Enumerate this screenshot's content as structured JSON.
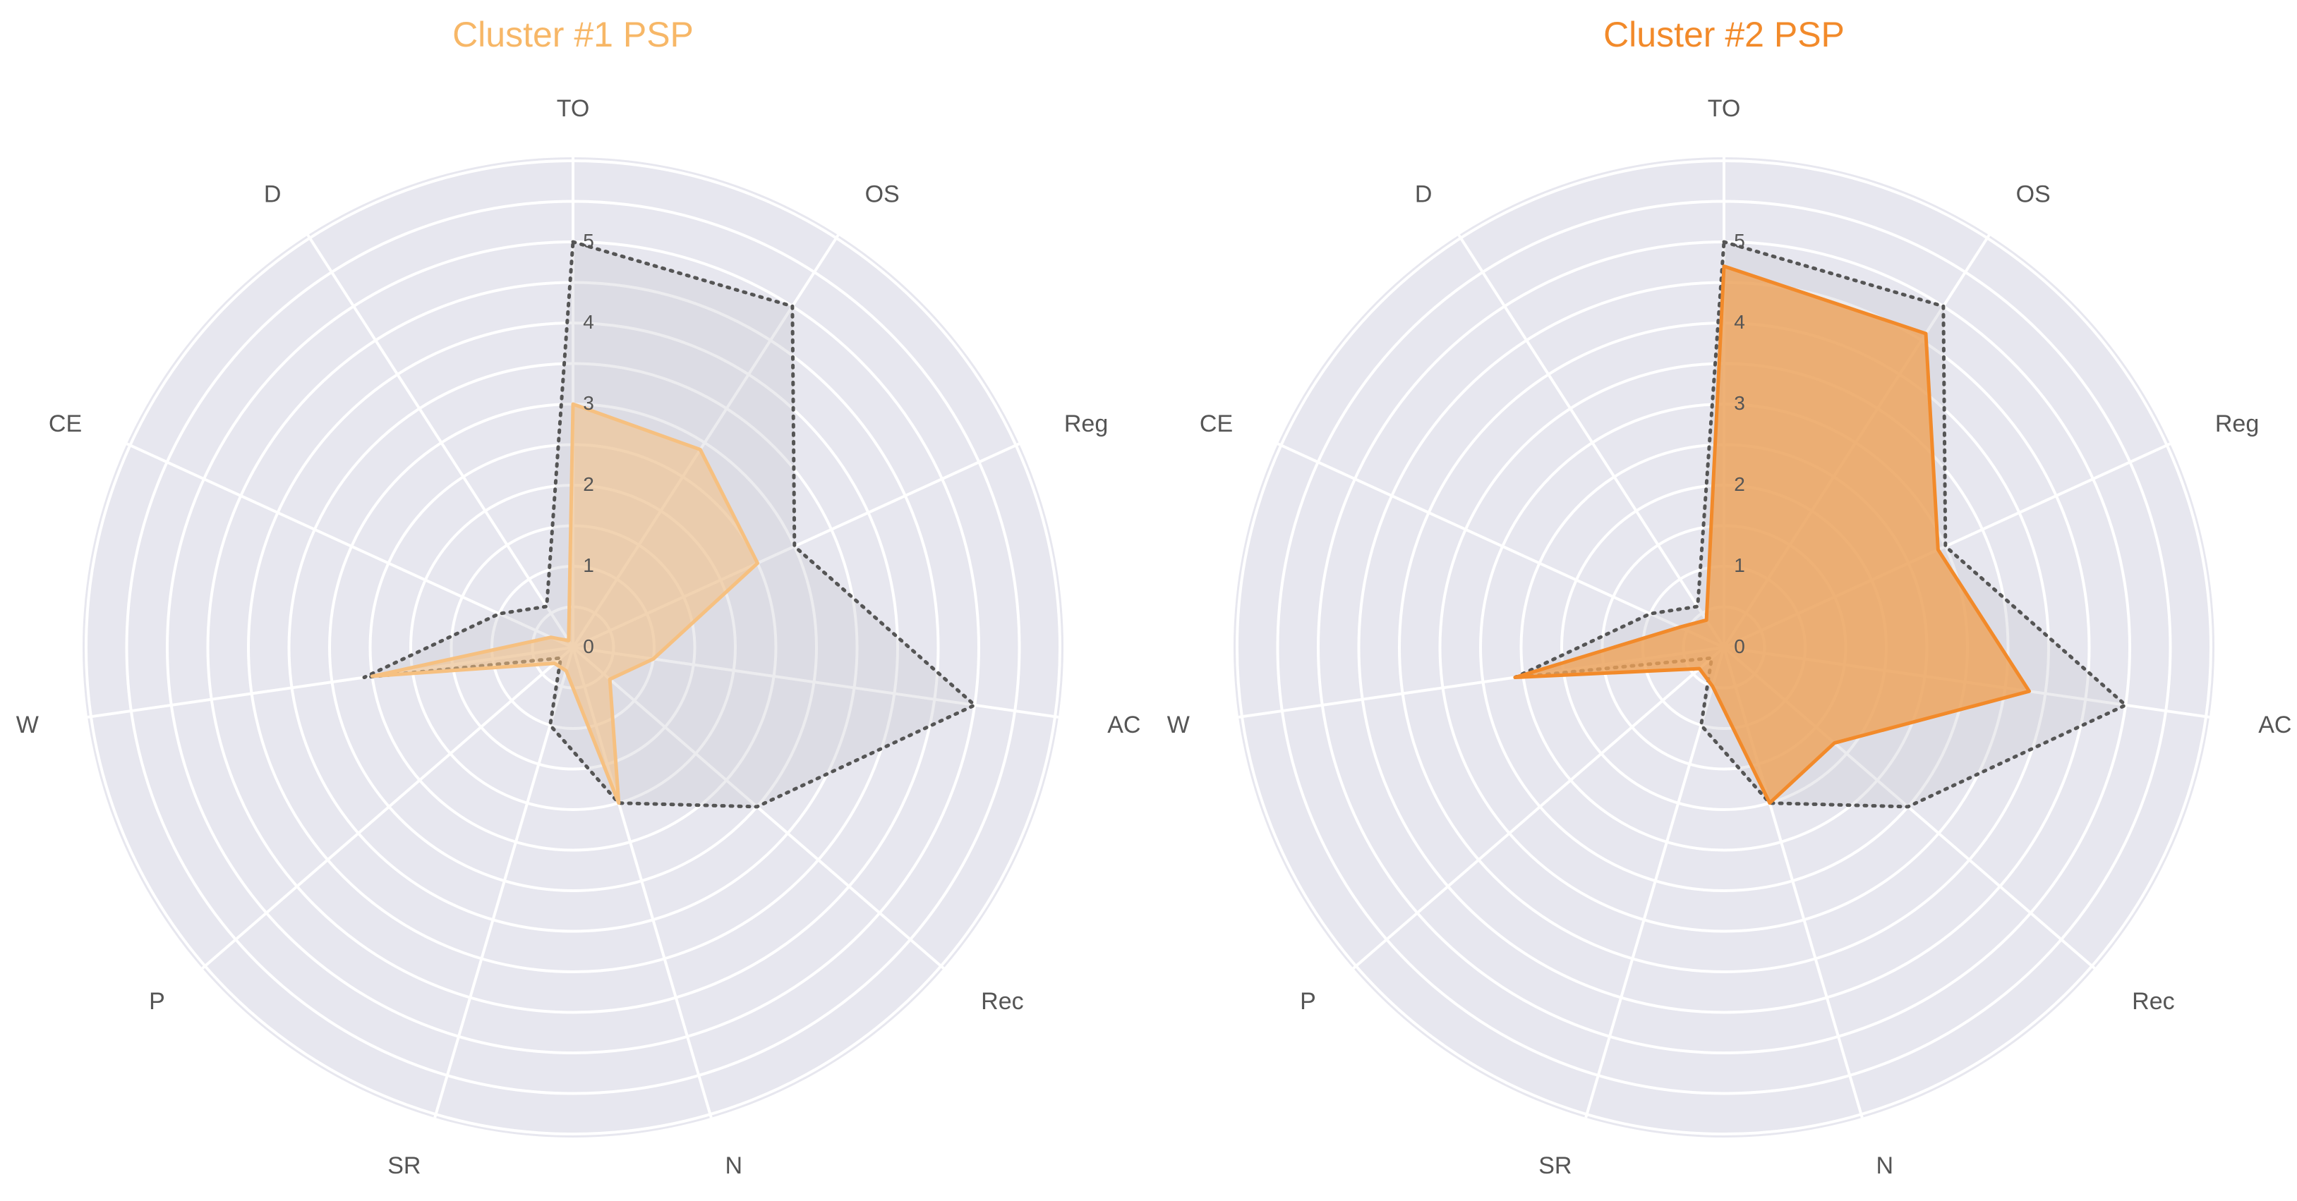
{
  "chart_data": [
    {
      "type": "radar",
      "title": "Cluster #1 PSP",
      "axes": [
        "TO",
        "OS",
        "Reg",
        "AC",
        "Rec",
        "N",
        "SR",
        "P",
        "W",
        "CE",
        "D"
      ],
      "radial_range": [
        0,
        5
      ],
      "radial_ticks": [
        "0",
        "1",
        "2",
        "3",
        "4",
        "5"
      ],
      "grid": true,
      "series": [
        {
          "values": [
            5.0,
            5.0,
            3.0,
            5.0,
            3.0,
            2.0,
            1.0,
            0.2,
            2.6,
            1.0,
            0.6
          ],
          "style": "dotted-outline",
          "color": "#555555",
          "fill": "#c8c8d0"
        },
        {
          "values": [
            3.0,
            2.9,
            2.5,
            1.0,
            0.6,
            2.0,
            0.3,
            0.3,
            2.5,
            0.3,
            0.1
          ],
          "style": "filled",
          "color": "#f6c080",
          "fill": "#f6c080"
        }
      ],
      "title_color": "#f7b767"
    },
    {
      "type": "radar",
      "title": "Cluster #2 PSP",
      "axes": [
        "TO",
        "OS",
        "Reg",
        "AC",
        "Rec",
        "N",
        "SR",
        "P",
        "W",
        "CE",
        "D"
      ],
      "radial_range": [
        0,
        5
      ],
      "radial_ticks": [
        "0",
        "1",
        "2",
        "3",
        "4",
        "5"
      ],
      "grid": true,
      "series": [
        {
          "values": [
            5.0,
            5.0,
            3.0,
            5.0,
            3.0,
            2.0,
            1.0,
            0.2,
            2.6,
            1.0,
            0.6
          ],
          "style": "dotted-outline",
          "color": "#555555",
          "fill": "#c8c8d0"
        },
        {
          "values": [
            4.7,
            4.6,
            2.9,
            3.8,
            1.8,
            2.0,
            0.5,
            0.4,
            2.6,
            0.6,
            0.4
          ],
          "style": "filled",
          "color": "#f28a2a",
          "fill": "#efa258"
        }
      ],
      "title_color": "#f28a2a"
    }
  ]
}
